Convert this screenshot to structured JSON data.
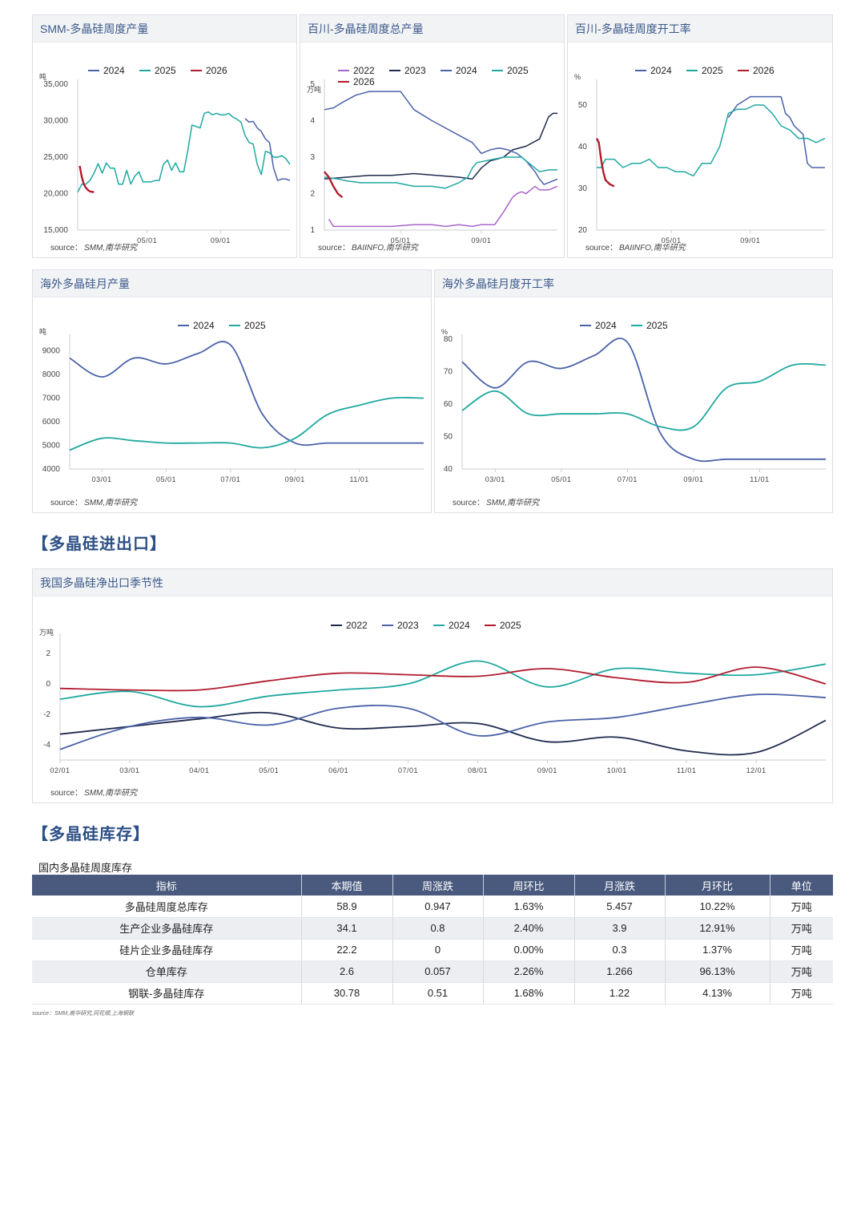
{
  "sections": {
    "trade": "【多晶硅进出口】",
    "inventory": "【多晶硅库存】"
  },
  "source_label": "source：",
  "colors": {
    "y2022": "#a865c9",
    "y2022b": "#1f2a4d",
    "y2023": "#1f2a4d",
    "y2023b": "#4a62a8",
    "y2024": "#4a62a8",
    "y2024b": "#1fa8a0",
    "y2025": "#1fa8a0",
    "y2025b": "#b01c2e",
    "y2026": "#b01c2e"
  },
  "chart_data": [
    {
      "id": "c1",
      "type": "line",
      "title": "SMM-多晶硅周度产量",
      "source": "SMM,南华研究",
      "ylabel": "吨",
      "ylim": [
        15000,
        35000
      ],
      "yticks": [
        15000,
        20000,
        25000,
        30000,
        35000
      ],
      "ytick_labels": [
        "15,000",
        "20,000",
        "25,000",
        "30,000",
        "35,000"
      ],
      "xlim": [
        0,
        52
      ],
      "xticks": [
        17,
        35
      ],
      "xtick_labels": [
        "05/01",
        "09/01"
      ],
      "series": [
        {
          "name": "2024",
          "color": "#4a62a8",
          "x": [
            41,
            42,
            43,
            44,
            45,
            46,
            47,
            48,
            49,
            50,
            51,
            52
          ],
          "y": [
            30300,
            29800,
            29900,
            29000,
            28500,
            27500,
            27000,
            23500,
            21800,
            22000,
            22000,
            21800
          ]
        },
        {
          "name": "2025",
          "color": "#1fa8a0",
          "x": [
            0,
            1,
            2,
            3,
            4,
            5,
            6,
            7,
            8,
            9,
            10,
            11,
            12,
            13,
            14,
            15,
            16,
            17,
            18,
            19,
            20,
            21,
            22,
            23,
            24,
            25,
            26,
            27,
            28,
            29,
            30,
            31,
            32,
            33,
            34,
            35,
            36,
            37,
            38,
            39,
            40,
            41,
            42,
            43,
            44,
            45,
            46,
            47,
            48,
            49,
            50,
            51,
            52
          ],
          "y": [
            20200,
            21300,
            21300,
            21800,
            22800,
            24100,
            22800,
            24200,
            23500,
            23500,
            21300,
            21300,
            23200,
            21300,
            22400,
            23000,
            21600,
            21600,
            21600,
            21800,
            21800,
            24000,
            24600,
            23200,
            24200,
            23000,
            23000,
            26000,
            29400,
            29200,
            29000,
            31000,
            31200,
            30800,
            31000,
            30800,
            30800,
            31000,
            30500,
            30200,
            29800,
            28000,
            27000,
            26800,
            24000,
            22600,
            25800,
            25600,
            25000,
            25000,
            25200,
            24800,
            24000
          ]
        },
        {
          "name": "2026",
          "color": "#b01c2e",
          "x": [
            0.5,
            1,
            1.5,
            2,
            2.5,
            3,
            4
          ],
          "y": [
            23800,
            22300,
            21300,
            20800,
            20500,
            20300,
            20200
          ]
        }
      ]
    },
    {
      "id": "c2",
      "type": "line",
      "title": "百川-多晶硅周度总产量",
      "source": "BAIINFO,南华研究",
      "ylabel": "万吨",
      "ylim": [
        1,
        5
      ],
      "yticks": [
        1,
        2,
        3,
        4,
        5
      ],
      "ytick_labels": [
        "1",
        "2",
        "3",
        "4",
        "5"
      ],
      "xlim": [
        0,
        52
      ],
      "xticks": [
        17,
        35
      ],
      "xtick_labels": [
        "05/01",
        "09/01"
      ],
      "series": [
        {
          "name": "2022",
          "color": "#a865c9",
          "x": [
            1,
            2,
            5,
            10,
            15,
            20,
            24,
            27,
            30,
            33,
            35,
            38,
            40,
            41,
            42,
            43,
            44,
            45,
            46,
            47,
            48,
            49,
            50,
            51,
            52
          ],
          "y": [
            1.3,
            1.1,
            1.1,
            1.1,
            1.1,
            1.15,
            1.15,
            1.1,
            1.15,
            1.1,
            1.15,
            1.15,
            1.5,
            1.7,
            1.9,
            2.0,
            2.05,
            2.0,
            2.1,
            2.2,
            2.1,
            2.1,
            2.1,
            2.15,
            2.2
          ]
        },
        {
          "name": "2023",
          "color": "#1f2a4d",
          "x": [
            0,
            5,
            10,
            15,
            20,
            25,
            30,
            33,
            35,
            37,
            40,
            42,
            45,
            48,
            50,
            51,
            52
          ],
          "y": [
            2.4,
            2.45,
            2.5,
            2.5,
            2.55,
            2.5,
            2.45,
            2.4,
            2.7,
            2.9,
            3.0,
            3.2,
            3.3,
            3.5,
            4.1,
            4.2,
            4.2
          ]
        },
        {
          "name": "2024",
          "color": "#4a62a8",
          "x": [
            0,
            2,
            4,
            7,
            10,
            13,
            17,
            20,
            24,
            27,
            30,
            33,
            35,
            37,
            39,
            41,
            43,
            45,
            47,
            48,
            49,
            50,
            51,
            52
          ],
          "y": [
            4.3,
            4.35,
            4.5,
            4.7,
            4.8,
            4.8,
            4.8,
            4.3,
            4.0,
            3.8,
            3.6,
            3.4,
            3.1,
            3.2,
            3.25,
            3.2,
            3.1,
            2.9,
            2.6,
            2.4,
            2.25,
            2.3,
            2.35,
            2.4
          ]
        },
        {
          "name": "2025",
          "color": "#1fa8a0",
          "x": [
            0,
            3,
            5,
            8,
            12,
            16,
            20,
            24,
            27,
            30,
            32,
            33,
            34,
            36,
            38,
            40,
            42,
            44,
            46,
            48,
            50,
            52
          ],
          "y": [
            2.45,
            2.4,
            2.35,
            2.3,
            2.3,
            2.3,
            2.2,
            2.2,
            2.15,
            2.3,
            2.45,
            2.7,
            2.85,
            2.9,
            2.95,
            3.0,
            3.0,
            3.0,
            2.8,
            2.6,
            2.65,
            2.65
          ]
        },
        {
          "name": "2026",
          "color": "#b01c2e",
          "x": [
            0,
            1,
            2,
            3,
            4
          ],
          "y": [
            2.6,
            2.45,
            2.2,
            2.0,
            1.9
          ]
        }
      ]
    },
    {
      "id": "c3",
      "type": "line",
      "title": "百川-多晶硅周度开工率",
      "source": "BAIINFO,南华研究",
      "ylabel": "%",
      "ylim": [
        20,
        55
      ],
      "yticks": [
        20,
        30,
        40,
        50
      ],
      "ytick_labels": [
        "20",
        "30",
        "40",
        "50"
      ],
      "xlim": [
        0,
        52
      ],
      "xticks": [
        17,
        35
      ],
      "xtick_labels": [
        "05/01",
        "09/01"
      ],
      "series": [
        {
          "name": "2024",
          "color": "#4a62a8",
          "x": [
            30,
            32,
            35,
            38,
            40,
            42,
            43,
            44,
            45,
            46,
            47,
            48,
            49,
            50,
            51,
            52
          ],
          "y": [
            47,
            50,
            52,
            52,
            52,
            52,
            48,
            47,
            45,
            44,
            43,
            36,
            35,
            35,
            35,
            35
          ]
        },
        {
          "name": "2025",
          "color": "#1fa8a0",
          "x": [
            0,
            1,
            2,
            3,
            4,
            6,
            8,
            10,
            12,
            14,
            16,
            18,
            20,
            22,
            24,
            26,
            28,
            30,
            32,
            34,
            36,
            38,
            40,
            42,
            44,
            46,
            48,
            50,
            52
          ],
          "y": [
            35,
            35,
            37,
            37,
            37,
            35,
            36,
            36,
            37,
            35,
            35,
            34,
            34,
            33,
            36,
            36,
            40,
            48,
            49,
            49,
            50,
            50,
            48,
            45,
            44,
            42,
            42,
            41,
            42
          ]
        },
        {
          "name": "2026",
          "color": "#b01c2e",
          "x": [
            0,
            0.5,
            1,
            1.5,
            2,
            3,
            4
          ],
          "y": [
            42,
            41,
            37,
            34,
            32,
            31,
            30.5
          ]
        }
      ]
    },
    {
      "id": "c4",
      "type": "line",
      "title": "海外多晶硅月产量",
      "source": "SMM,南华研究",
      "ylabel": "吨",
      "ylim": [
        4000,
        9500
      ],
      "yticks": [
        4000,
        5000,
        6000,
        7000,
        8000,
        9000
      ],
      "ytick_labels": [
        "4000",
        "5000",
        "6000",
        "7000",
        "8000",
        "9000"
      ],
      "xlim": [
        0,
        11
      ],
      "xticks": [
        1,
        3,
        5,
        7,
        9
      ],
      "xtick_labels": [
        "03/01",
        "05/01",
        "07/01",
        "09/01",
        "11/01"
      ],
      "series": [
        {
          "name": "2024",
          "color": "#4a62a8",
          "x": [
            0,
            1,
            2,
            3,
            4,
            5,
            6,
            7,
            8,
            9,
            10,
            11
          ],
          "y": [
            8700,
            7900,
            8700,
            8450,
            8900,
            9250,
            6300,
            5100,
            5100,
            5100,
            5100,
            5100
          ]
        },
        {
          "name": "2025",
          "color": "#1fa8a0",
          "x": [
            0,
            1,
            2,
            3,
            4,
            5,
            6,
            7,
            8,
            9,
            10,
            11
          ],
          "y": [
            4800,
            5300,
            5200,
            5100,
            5100,
            5100,
            4900,
            5300,
            6300,
            6700,
            7000,
            7000
          ]
        }
      ]
    },
    {
      "id": "c5",
      "type": "line",
      "title": "海外多晶硅月度开工率",
      "source": "SMM,南华研究",
      "ylabel": "%",
      "ylim": [
        40,
        80
      ],
      "yticks": [
        40,
        50,
        60,
        70,
        80
      ],
      "ytick_labels": [
        "40",
        "50",
        "60",
        "70",
        "80"
      ],
      "xlim": [
        0,
        11
      ],
      "xticks": [
        1,
        3,
        5,
        7,
        9
      ],
      "xtick_labels": [
        "03/01",
        "05/01",
        "07/01",
        "09/01",
        "11/01"
      ],
      "series": [
        {
          "name": "2024",
          "color": "#4a62a8",
          "x": [
            0,
            1,
            2,
            3,
            4,
            5,
            6,
            7,
            8,
            9,
            10,
            11
          ],
          "y": [
            73,
            65,
            73,
            71,
            75,
            79,
            51,
            43,
            43,
            43,
            43,
            43
          ]
        },
        {
          "name": "2025",
          "color": "#1fa8a0",
          "x": [
            0,
            1,
            2,
            3,
            4,
            5,
            6,
            7,
            8,
            9,
            10,
            11
          ],
          "y": [
            58,
            64,
            57,
            57,
            57,
            57,
            53,
            53,
            65,
            67,
            72,
            72
          ]
        }
      ]
    },
    {
      "id": "c6",
      "type": "line",
      "title": "我国多晶硅净出口季节性",
      "source": "SMM,南华研究",
      "ylabel": "万吨",
      "ylim": [
        -5,
        3
      ],
      "yticks": [
        -4,
        -2,
        0,
        2
      ],
      "ytick_labels": [
        "-4",
        "-2",
        "0",
        "2"
      ],
      "xlim": [
        0,
        11
      ],
      "xticks": [
        0,
        1,
        2,
        3,
        4,
        5,
        6,
        7,
        8,
        9,
        10
      ],
      "xtick_labels": [
        "02/01",
        "03/01",
        "04/01",
        "05/01",
        "06/01",
        "07/01",
        "08/01",
        "09/01",
        "10/01",
        "11/01",
        "12/01"
      ],
      "series": [
        {
          "name": "2022",
          "color": "#1f2a4d",
          "x": [
            0,
            1,
            2,
            3,
            4,
            5,
            6,
            7,
            8,
            9,
            10,
            11
          ],
          "y": [
            -3.3,
            -2.8,
            -2.3,
            -1.9,
            -2.9,
            -2.8,
            -2.6,
            -3.8,
            -3.5,
            -4.4,
            -4.5,
            -2.4
          ]
        },
        {
          "name": "2023",
          "color": "#4a62a8",
          "x": [
            0,
            1,
            2,
            3,
            4,
            5,
            6,
            7,
            8,
            9,
            10,
            11
          ],
          "y": [
            -4.3,
            -2.8,
            -2.2,
            -2.7,
            -1.6,
            -1.6,
            -3.4,
            -2.5,
            -2.2,
            -1.4,
            -0.7,
            -0.9
          ]
        },
        {
          "name": "2024",
          "color": "#1fa8a0",
          "x": [
            0,
            1,
            2,
            3,
            4,
            5,
            6,
            7,
            8,
            9,
            10,
            11
          ],
          "y": [
            -1.0,
            -0.5,
            -1.5,
            -0.8,
            -0.4,
            0.0,
            1.5,
            -0.2,
            1.0,
            0.7,
            0.6,
            1.3
          ]
        },
        {
          "name": "2025",
          "color": "#b01c2e",
          "x": [
            0,
            1,
            2,
            3,
            4,
            5,
            6,
            7,
            8,
            9,
            10,
            11
          ],
          "y": [
            -0.3,
            -0.4,
            -0.4,
            0.2,
            0.7,
            0.6,
            0.5,
            1.0,
            0.4,
            0.1,
            1.1,
            0.0
          ]
        }
      ]
    }
  ],
  "inventory_table": {
    "title": "国内多晶硅周度库存",
    "headers": [
      "指标",
      "本期值",
      "周涨跌",
      "周环比",
      "月涨跌",
      "月环比",
      "单位"
    ],
    "rows": [
      [
        "多晶硅周度总库存",
        "58.9",
        "0.947",
        "1.63%",
        "5.457",
        "10.22%",
        "万吨"
      ],
      [
        "生产企业多晶硅库存",
        "34.1",
        "0.8",
        "2.40%",
        "3.9",
        "12.91%",
        "万吨"
      ],
      [
        "硅片企业多晶硅库存",
        "22.2",
        "0",
        "0.00%",
        "0.3",
        "1.37%",
        "万吨"
      ],
      [
        "仓单库存",
        "2.6",
        "0.057",
        "2.26%",
        "1.266",
        "96.13%",
        "万吨"
      ],
      [
        "钢联-多晶硅库存",
        "30.78",
        "0.51",
        "1.68%",
        "1.22",
        "4.13%",
        "万吨"
      ]
    ],
    "source": "source：SMM,南华研究,同花顺,上海钢联"
  }
}
